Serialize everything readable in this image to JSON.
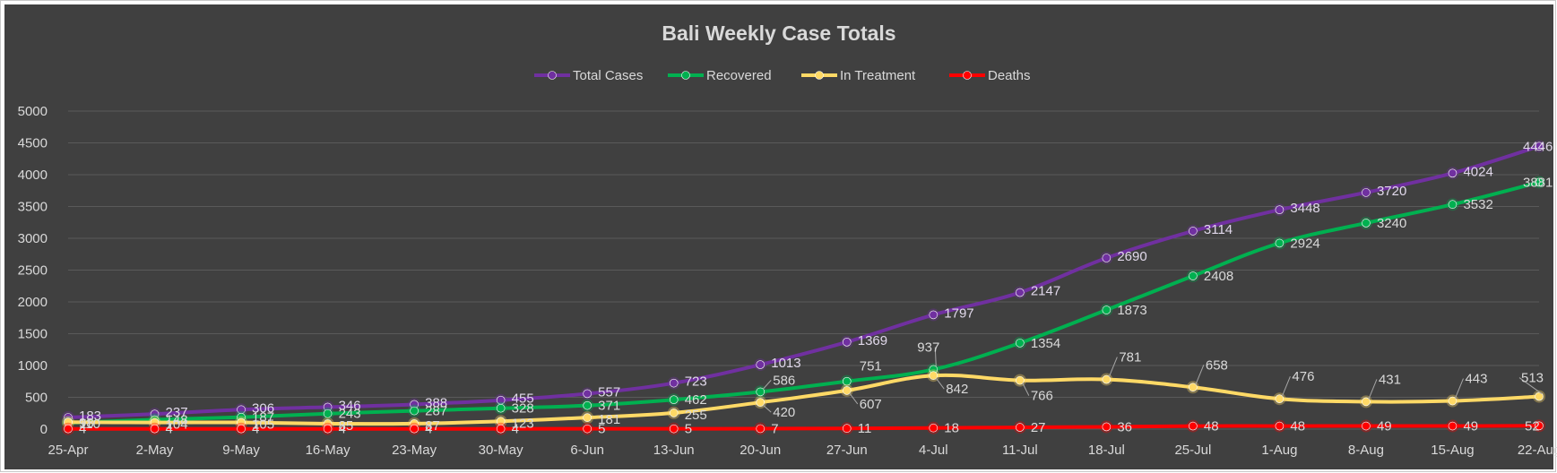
{
  "chart_data": {
    "type": "line",
    "title": "Bali Weekly Case Totals",
    "xlabel": "",
    "ylabel": "",
    "ylim": [
      0,
      5000
    ],
    "yticks": [
      0,
      500,
      1000,
      1500,
      2000,
      2500,
      3000,
      3500,
      4000,
      4500,
      5000
    ],
    "grid": true,
    "legend_position": "top",
    "background": "#404040",
    "categories": [
      "25-Apr",
      "2-May",
      "9-May",
      "16-May",
      "23-May",
      "30-May",
      "6-Jun",
      "13-Jun",
      "20-Jun",
      "27-Jun",
      "4-Jul",
      "11-Jul",
      "18-Jul",
      "25-Jul",
      "1-Aug",
      "8-Aug",
      "15-Aug",
      "22-Aug"
    ],
    "series": [
      {
        "name": "Total Cases",
        "color": "#7030a0",
        "values": [
          183,
          237,
          306,
          346,
          388,
          455,
          557,
          723,
          1013,
          1369,
          1797,
          2147,
          2690,
          3114,
          3448,
          3720,
          4024,
          4446
        ]
      },
      {
        "name": "Recovered",
        "color": "#00b050",
        "values": [
          98,
          148,
          187,
          243,
          287,
          328,
          371,
          462,
          586,
          751,
          937,
          1354,
          1873,
          2408,
          2924,
          3240,
          3532,
          3881
        ]
      },
      {
        "name": "In Treatment",
        "color": "#ffd966",
        "values": [
          110,
          104,
          105,
          85,
          87,
          123,
          181,
          255,
          420,
          607,
          842,
          766,
          781,
          658,
          476,
          431,
          443,
          513
        ]
      },
      {
        "name": "Deaths",
        "color": "#ff0000",
        "values": [
          4,
          4,
          4,
          4,
          4,
          4,
          5,
          5,
          7,
          11,
          18,
          27,
          36,
          48,
          48,
          49,
          49,
          52
        ]
      }
    ]
  }
}
